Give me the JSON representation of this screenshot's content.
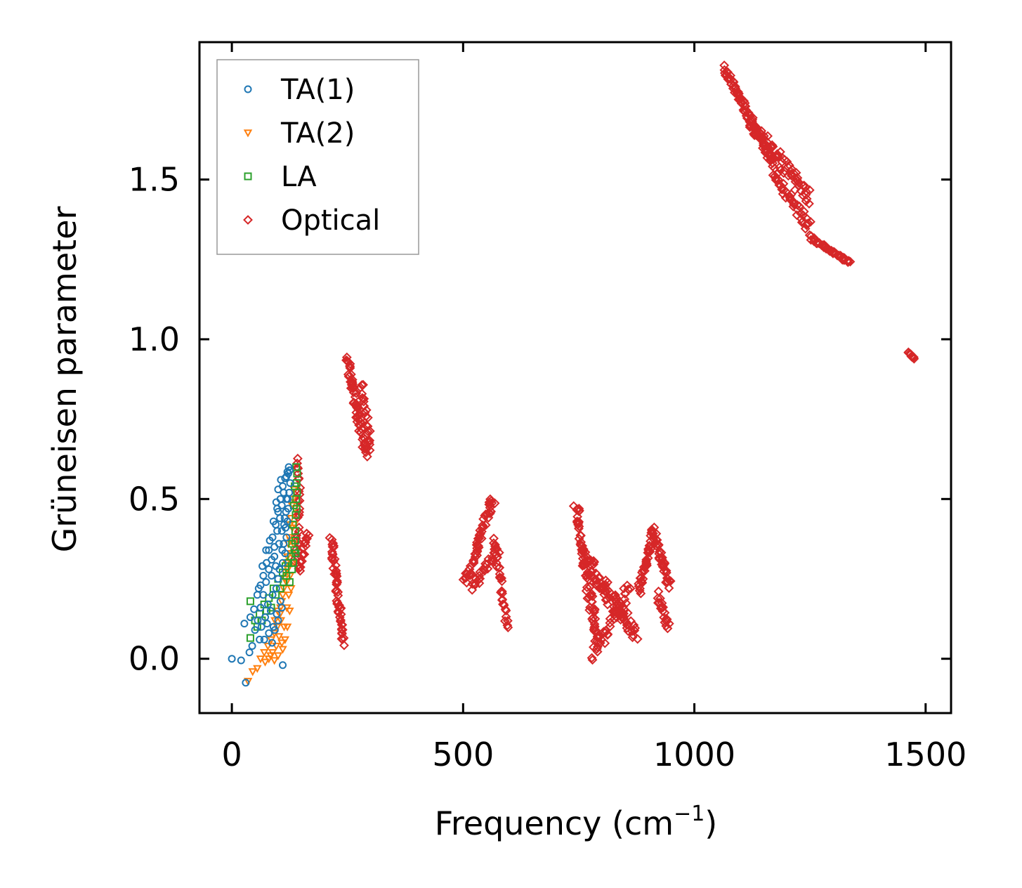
{
  "chart_data": {
    "type": "scatter",
    "title": "",
    "xlabel": "Frequency (cm",
    "xlabel_sup": "−1",
    "xlabel_end": ")",
    "ylabel": "Grüneisen parameter",
    "xlim": [
      -70,
      1555
    ],
    "ylim": [
      -0.17,
      1.93
    ],
    "xticks": [
      0,
      500,
      1000,
      1500
    ],
    "xtick_labels": [
      "0",
      "500",
      "1000",
      "1500"
    ],
    "yticks": [
      0.0,
      0.5,
      1.0,
      1.5
    ],
    "ytick_labels": [
      "0.0",
      "0.5",
      "1.0",
      "1.5"
    ],
    "grid": false,
    "legend_position": "top-left",
    "series": [
      {
        "name": "TA(1)",
        "marker": "circle",
        "color": "#1f77b4",
        "points": [
          [
            0,
            0.0
          ],
          [
            20,
            -0.005
          ],
          [
            30,
            -0.075
          ],
          [
            27,
            0.11
          ],
          [
            40,
            0.13
          ],
          [
            48,
            0.155
          ],
          [
            55,
            0.2
          ],
          [
            62,
            0.23
          ],
          [
            68,
            0.26
          ],
          [
            75,
            0.3
          ],
          [
            80,
            0.34
          ],
          [
            88,
            0.38
          ],
          [
            95,
            0.42
          ],
          [
            100,
            0.46
          ],
          [
            105,
            0.5
          ],
          [
            110,
            0.54
          ],
          [
            115,
            0.565
          ],
          [
            120,
            0.585
          ],
          [
            123,
            0.6
          ],
          [
            118,
            0.57
          ],
          [
            112,
            0.52
          ],
          [
            108,
            0.48
          ],
          [
            104,
            0.44
          ],
          [
            98,
            0.4
          ],
          [
            92,
            0.35
          ],
          [
            86,
            0.31
          ],
          [
            80,
            0.28
          ],
          [
            74,
            0.24
          ],
          [
            68,
            0.2
          ],
          [
            62,
            0.16
          ],
          [
            56,
            0.12
          ],
          [
            50,
            0.09
          ],
          [
            60,
            0.06
          ],
          [
            70,
            0.06
          ],
          [
            80,
            0.08
          ],
          [
            90,
            0.1
          ],
          [
            100,
            0.12
          ],
          [
            108,
            0.16
          ],
          [
            100,
            0.25
          ],
          [
            95,
            0.29
          ],
          [
            110,
            0.3
          ],
          [
            115,
            0.33
          ],
          [
            118,
            0.38
          ],
          [
            120,
            0.43
          ],
          [
            122,
            0.47
          ],
          [
            124,
            0.52
          ],
          [
            126,
            0.55
          ],
          [
            122,
            0.58
          ],
          [
            110,
            -0.02
          ],
          [
            105,
            0.18
          ],
          [
            96,
            0.22
          ],
          [
            88,
            0.2
          ],
          [
            78,
            0.17
          ],
          [
            72,
            0.13
          ],
          [
            64,
            0.1
          ],
          [
            86,
            0.26
          ],
          [
            92,
            0.32
          ],
          [
            102,
            0.36
          ],
          [
            108,
            0.4
          ],
          [
            114,
            0.44
          ],
          [
            118,
            0.5
          ],
          [
            106,
            0.56
          ],
          [
            100,
            0.53
          ],
          [
            96,
            0.49
          ],
          [
            112,
            0.36
          ],
          [
            116,
            0.41
          ],
          [
            84,
            0.15
          ],
          [
            76,
            0.11
          ],
          [
            58,
            0.22
          ],
          [
            66,
            0.29
          ],
          [
            74,
            0.34
          ],
          [
            82,
            0.37
          ],
          [
            90,
            0.43
          ],
          [
            98,
            0.47
          ],
          [
            125,
            0.59
          ],
          [
            121,
            0.5
          ],
          [
            117,
            0.46
          ],
          [
            113,
            0.42
          ],
          [
            109,
            0.34
          ],
          [
            103,
            0.28
          ],
          [
            97,
            0.14
          ],
          [
            93,
            0.09
          ],
          [
            87,
            0.05
          ],
          [
            44,
            0.04
          ],
          [
            38,
            0.02
          ]
        ]
      },
      {
        "name": "TA(2)",
        "marker": "triangle-down",
        "color": "#ff7f0e",
        "points": [
          [
            35,
            -0.07
          ],
          [
            45,
            -0.04
          ],
          [
            55,
            -0.03
          ],
          [
            62,
            0.0
          ],
          [
            70,
            0.02
          ],
          [
            78,
            0.04
          ],
          [
            85,
            0.06
          ],
          [
            92,
            0.08
          ],
          [
            98,
            0.1
          ],
          [
            104,
            0.14
          ],
          [
            108,
            0.18
          ],
          [
            112,
            0.22
          ],
          [
            116,
            0.27
          ],
          [
            120,
            0.32
          ],
          [
            124,
            0.38
          ],
          [
            128,
            0.44
          ],
          [
            132,
            0.5
          ],
          [
            134,
            0.53
          ],
          [
            130,
            0.48
          ],
          [
            126,
            0.42
          ],
          [
            122,
            0.36
          ],
          [
            118,
            0.3
          ],
          [
            114,
            0.25
          ],
          [
            110,
            0.2
          ],
          [
            106,
            0.12
          ],
          [
            102,
            0.07
          ],
          [
            96,
            0.04
          ],
          [
            88,
            0.02
          ],
          [
            80,
            0.0
          ],
          [
            72,
            -0.01
          ],
          [
            110,
            0.03
          ],
          [
            115,
            0.06
          ],
          [
            120,
            0.1
          ],
          [
            125,
            0.15
          ],
          [
            128,
            0.22
          ],
          [
            131,
            0.3
          ],
          [
            133,
            0.36
          ],
          [
            135,
            0.42
          ],
          [
            136,
            0.47
          ],
          [
            129,
            0.33
          ],
          [
            126,
            0.26
          ],
          [
            123,
            0.2
          ],
          [
            119,
            0.16
          ],
          [
            113,
            0.1
          ],
          [
            108,
            0.05
          ],
          [
            100,
            0.01
          ],
          [
            92,
            -0.005
          ],
          [
            84,
            0.01
          ],
          [
            118,
            0.24
          ],
          [
            121,
            0.28
          ],
          [
            127,
            0.37
          ],
          [
            131,
            0.41
          ],
          [
            105,
            0.16
          ],
          [
            99,
            0.15
          ],
          [
            93,
            0.12
          ]
        ]
      },
      {
        "name": "LA",
        "marker": "square",
        "color": "#2ca02c",
        "points": [
          [
            40,
            0.18
          ],
          [
            40,
            0.065
          ],
          [
            55,
            0.1
          ],
          [
            65,
            0.12
          ],
          [
            75,
            0.15
          ],
          [
            85,
            0.16
          ],
          [
            95,
            0.2
          ],
          [
            105,
            0.22
          ],
          [
            112,
            0.24
          ],
          [
            118,
            0.26
          ],
          [
            125,
            0.24
          ],
          [
            130,
            0.28
          ],
          [
            133,
            0.3
          ],
          [
            135,
            0.34
          ],
          [
            137,
            0.4
          ],
          [
            138,
            0.45
          ],
          [
            139,
            0.5
          ],
          [
            140,
            0.55
          ],
          [
            141,
            0.58
          ],
          [
            139,
            0.6
          ],
          [
            136,
            0.54
          ],
          [
            134,
            0.48
          ],
          [
            132,
            0.42
          ],
          [
            130,
            0.36
          ],
          [
            128,
            0.32
          ],
          [
            122,
            0.3
          ],
          [
            116,
            0.29
          ],
          [
            110,
            0.27
          ],
          [
            100,
            0.25
          ],
          [
            90,
            0.22
          ],
          [
            80,
            0.19
          ],
          [
            70,
            0.17
          ],
          [
            60,
            0.14
          ],
          [
            50,
            0.12
          ],
          [
            137,
            0.37
          ],
          [
            138,
            0.33
          ],
          [
            140,
            0.47
          ],
          [
            141,
            0.52
          ]
        ]
      },
      {
        "name": "Optical",
        "marker": "diamond",
        "color": "#d62728",
        "segments": [
          {
            "from": [
              140,
              0.3
            ],
            "to": [
              145,
              0.62
            ],
            "n": 30,
            "jx": 8,
            "jy": 0.04
          },
          {
            "from": [
              145,
              0.28
            ],
            "to": [
              165,
              0.4
            ],
            "n": 20,
            "jx": 6,
            "jy": 0.03
          },
          {
            "from": [
              215,
              0.38
            ],
            "to": [
              240,
              0.05
            ],
            "n": 55,
            "jx": 7,
            "jy": 0.025
          },
          {
            "from": [
              250,
              0.94
            ],
            "to": [
              290,
              0.64
            ],
            "n": 65,
            "jx": 9,
            "jy": 0.035
          },
          {
            "from": [
              280,
              0.86
            ],
            "to": [
              300,
              0.66
            ],
            "n": 25,
            "jx": 6,
            "jy": 0.03
          },
          {
            "from": [
              505,
              0.24
            ],
            "to": [
              565,
              0.5
            ],
            "n": 60,
            "jx": 10,
            "jy": 0.03
          },
          {
            "from": [
              520,
              0.22
            ],
            "to": [
              575,
              0.34
            ],
            "n": 25,
            "jx": 8,
            "jy": 0.03
          },
          {
            "from": [
              565,
              0.38
            ],
            "to": [
              595,
              0.1
            ],
            "n": 35,
            "jx": 7,
            "jy": 0.03
          },
          {
            "from": [
              745,
              0.48
            ],
            "to": [
              790,
              0.05
            ],
            "n": 75,
            "jx": 12,
            "jy": 0.035
          },
          {
            "from": [
              760,
              0.32
            ],
            "to": [
              870,
              0.08
            ],
            "n": 90,
            "jx": 18,
            "jy": 0.06
          },
          {
            "from": [
              780,
              0.02
            ],
            "to": [
              860,
              0.22
            ],
            "n": 40,
            "jx": 14,
            "jy": 0.05
          },
          {
            "from": [
              880,
              0.2
            ],
            "to": [
              910,
              0.4
            ],
            "n": 40,
            "jx": 8,
            "jy": 0.03
          },
          {
            "from": [
              910,
              0.4
            ],
            "to": [
              945,
              0.23
            ],
            "n": 40,
            "jx": 8,
            "jy": 0.03
          },
          {
            "from": [
              920,
              0.2
            ],
            "to": [
              945,
              0.09
            ],
            "n": 20,
            "jx": 6,
            "jy": 0.03
          },
          {
            "from": [
              1065,
              1.85
            ],
            "to": [
              1170,
              1.55
            ],
            "n": 90,
            "jx": 6,
            "jy": 0.025
          },
          {
            "from": [
              1120,
              1.68
            ],
            "to": [
              1250,
              1.44
            ],
            "n": 70,
            "jx": 10,
            "jy": 0.05
          },
          {
            "from": [
              1170,
              1.52
            ],
            "to": [
              1250,
              1.35
            ],
            "n": 40,
            "jx": 8,
            "jy": 0.04
          },
          {
            "from": [
              1250,
              1.32
            ],
            "to": [
              1335,
              1.24
            ],
            "n": 40,
            "jx": 5,
            "jy": 0.012
          },
          {
            "from": [
              1462,
              0.96
            ],
            "to": [
              1475,
              0.94
            ],
            "n": 10,
            "jx": 2,
            "jy": 0.006
          }
        ]
      }
    ]
  }
}
